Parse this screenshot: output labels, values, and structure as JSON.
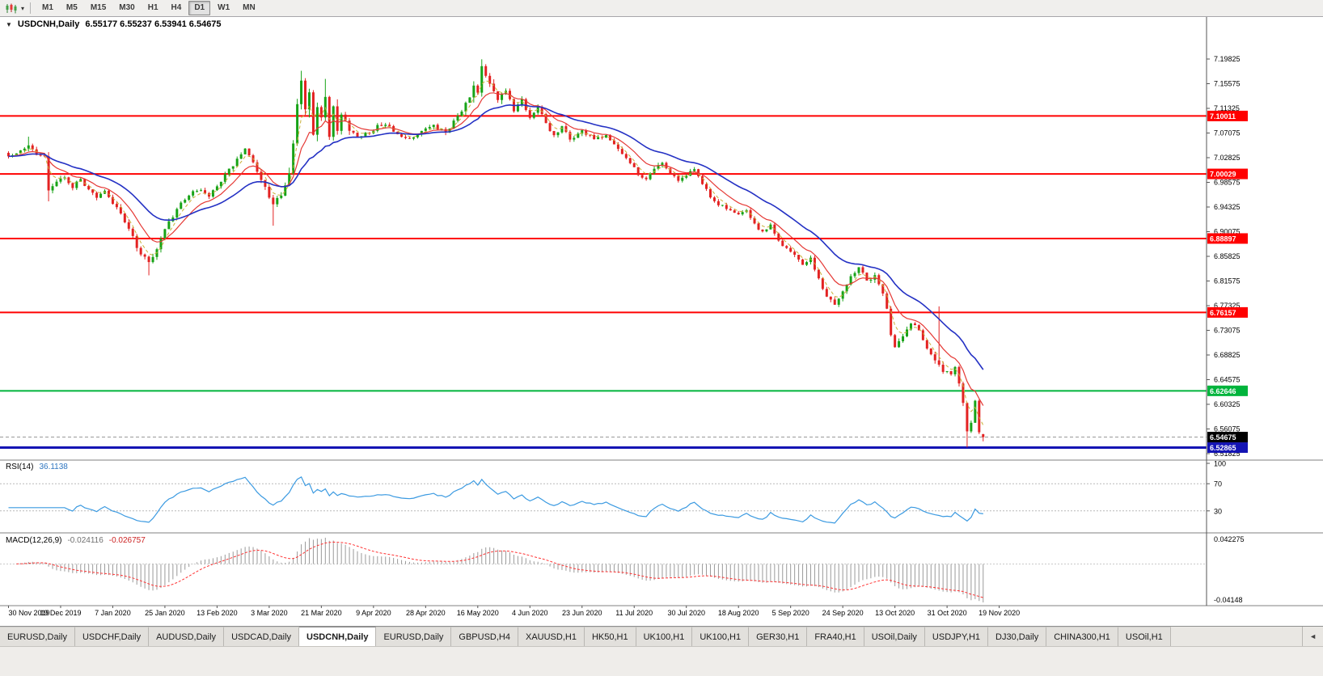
{
  "toolbar": {
    "timeframes": [
      "M1",
      "M5",
      "M15",
      "M30",
      "H1",
      "H4",
      "D1",
      "W1",
      "MN"
    ],
    "active": "D1"
  },
  "chart": {
    "collapse_icon": "▼",
    "title_symbol": "USDCNH,Daily",
    "title_ohlc": "6.55177 6.55237 6.53941 6.54675"
  },
  "chart_data": {
    "type": "candlestick",
    "symbol": "USDCNH",
    "timeframe": "Daily",
    "bars": 244,
    "seed": 20201119,
    "last_bar": {
      "open": 6.55177,
      "high": 6.55237,
      "low": 6.53941,
      "close": 6.54675
    },
    "price_range_visible": [
      6.51825,
      7.19825
    ],
    "y_ticks": [
      7.19825,
      7.15575,
      7.11325,
      7.07075,
      7.02825,
      6.98575,
      6.94325,
      6.90075,
      6.85825,
      6.81575,
      6.77325,
      6.73075,
      6.68825,
      6.64575,
      6.60325,
      6.56075,
      6.51825
    ],
    "x_labels": [
      "30 Nov 2019",
      "19 Dec 2019",
      "7 Jan 2020",
      "25 Jan 2020",
      "13 Feb 2020",
      "3 Mar 2020",
      "21 Mar 2020",
      "9 Apr 2020",
      "28 Apr 2020",
      "16 May 2020",
      "4 Jun 2020",
      "23 Jun 2020",
      "11 Jul 2020",
      "30 Jul 2020",
      "18 Aug 2020",
      "5 Sep 2020",
      "24 Sep 2020",
      "13 Oct 2020",
      "31 Oct 2020",
      "19 Nov 2020"
    ],
    "x_label_every": 13,
    "close_anchors": [
      [
        0,
        7.032
      ],
      [
        3,
        7.04
      ],
      [
        5,
        7.052
      ],
      [
        7,
        7.036
      ],
      [
        9,
        7.028
      ],
      [
        10,
        6.975
      ],
      [
        12,
        6.986
      ],
      [
        14,
        6.994
      ],
      [
        16,
        6.978
      ],
      [
        18,
        6.99
      ],
      [
        20,
        6.972
      ],
      [
        22,
        6.962
      ],
      [
        24,
        6.973
      ],
      [
        26,
        6.951
      ],
      [
        28,
        6.934
      ],
      [
        30,
        6.905
      ],
      [
        33,
        6.862
      ],
      [
        35,
        6.846
      ],
      [
        37,
        6.872
      ],
      [
        39,
        6.904
      ],
      [
        41,
        6.927
      ],
      [
        44,
        6.958
      ],
      [
        47,
        6.973
      ],
      [
        50,
        6.964
      ],
      [
        53,
        6.989
      ],
      [
        56,
        7.016
      ],
      [
        59,
        7.041
      ],
      [
        61,
        7.02
      ],
      [
        63,
        6.993
      ],
      [
        66,
        6.946
      ],
      [
        68,
        6.963
      ],
      [
        70,
        6.999
      ],
      [
        71,
        7.058
      ],
      [
        72,
        7.118
      ],
      [
        73,
        7.152
      ],
      [
        74,
        7.108
      ],
      [
        75,
        7.14
      ],
      [
        76,
        7.075
      ],
      [
        77,
        7.118
      ],
      [
        78,
        7.09
      ],
      [
        79,
        7.128
      ],
      [
        80,
        7.072
      ],
      [
        81,
        7.108
      ],
      [
        82,
        7.08
      ],
      [
        83,
        7.098
      ],
      [
        85,
        7.076
      ],
      [
        88,
        7.062
      ],
      [
        91,
        7.078
      ],
      [
        94,
        7.088
      ],
      [
        97,
        7.066
      ],
      [
        100,
        7.058
      ],
      [
        103,
        7.074
      ],
      [
        106,
        7.084
      ],
      [
        109,
        7.072
      ],
      [
        111,
        7.092
      ],
      [
        113,
        7.108
      ],
      [
        115,
        7.132
      ],
      [
        116,
        7.158
      ],
      [
        117,
        7.146
      ],
      [
        118,
        7.182
      ],
      [
        119,
        7.165
      ],
      [
        120,
        7.152
      ],
      [
        122,
        7.128
      ],
      [
        124,
        7.148
      ],
      [
        126,
        7.112
      ],
      [
        128,
        7.128
      ],
      [
        130,
        7.098
      ],
      [
        132,
        7.115
      ],
      [
        134,
        7.086
      ],
      [
        136,
        7.068
      ],
      [
        138,
        7.08
      ],
      [
        140,
        7.06
      ],
      [
        143,
        7.074
      ],
      [
        146,
        7.06
      ],
      [
        149,
        7.068
      ],
      [
        152,
        7.045
      ],
      [
        155,
        7.018
      ],
      [
        157,
        7.0
      ],
      [
        159,
        6.992
      ],
      [
        161,
        7.01
      ],
      [
        163,
        7.022
      ],
      [
        165,
        7.002
      ],
      [
        167,
        6.986
      ],
      [
        169,
        6.998
      ],
      [
        171,
        7.01
      ],
      [
        173,
        6.984
      ],
      [
        175,
        6.96
      ],
      [
        177,
        6.948
      ],
      [
        179,
        6.94
      ],
      [
        182,
        6.928
      ],
      [
        184,
        6.94
      ],
      [
        186,
        6.914
      ],
      [
        188,
        6.9
      ],
      [
        190,
        6.91
      ],
      [
        192,
        6.885
      ],
      [
        194,
        6.872
      ],
      [
        196,
        6.858
      ],
      [
        198,
        6.845
      ],
      [
        200,
        6.855
      ],
      [
        202,
        6.818
      ],
      [
        204,
        6.79
      ],
      [
        206,
        6.775
      ],
      [
        208,
        6.8
      ],
      [
        210,
        6.822
      ],
      [
        212,
        6.838
      ],
      [
        214,
        6.815
      ],
      [
        216,
        6.824
      ],
      [
        218,
        6.795
      ],
      [
        219,
        6.765
      ],
      [
        220,
        6.725
      ],
      [
        221,
        6.7
      ],
      [
        223,
        6.72
      ],
      [
        225,
        6.745
      ],
      [
        227,
        6.732
      ],
      [
        229,
        6.7
      ],
      [
        231,
        6.678
      ],
      [
        233,
        6.66
      ],
      [
        235,
        6.654
      ],
      [
        236,
        6.668
      ],
      [
        237,
        6.64
      ],
      [
        238,
        6.6
      ],
      [
        239,
        6.56
      ],
      [
        240,
        6.576
      ],
      [
        241,
        6.608
      ],
      [
        242,
        6.552
      ],
      [
        243,
        6.547
      ]
    ],
    "range_anchors": [
      [
        0,
        0.013
      ],
      [
        9,
        0.013
      ],
      [
        10,
        0.022
      ],
      [
        12,
        0.012
      ],
      [
        26,
        0.012
      ],
      [
        32,
        0.018
      ],
      [
        40,
        0.014
      ],
      [
        52,
        0.011
      ],
      [
        60,
        0.012
      ],
      [
        65,
        0.016
      ],
      [
        69,
        0.02
      ],
      [
        71,
        0.034
      ],
      [
        74,
        0.046
      ],
      [
        82,
        0.034
      ],
      [
        86,
        0.018
      ],
      [
        95,
        0.012
      ],
      [
        105,
        0.012
      ],
      [
        112,
        0.016
      ],
      [
        117,
        0.026
      ],
      [
        121,
        0.022
      ],
      [
        126,
        0.016
      ],
      [
        132,
        0.013
      ],
      [
        145,
        0.011
      ],
      [
        157,
        0.012
      ],
      [
        170,
        0.011
      ],
      [
        182,
        0.011
      ],
      [
        195,
        0.013
      ],
      [
        208,
        0.013
      ],
      [
        218,
        0.016
      ],
      [
        222,
        0.014
      ],
      [
        228,
        0.013
      ],
      [
        232,
        0.016
      ],
      [
        236,
        0.015
      ],
      [
        238,
        0.024
      ],
      [
        241,
        0.018
      ],
      [
        243,
        0.012
      ]
    ],
    "wick_events": [
      {
        "i": 5,
        "high": 7.0645
      },
      {
        "i": 10,
        "low": 6.953
      },
      {
        "i": 35,
        "low": 6.8255
      },
      {
        "i": 66,
        "low": 6.911
      },
      {
        "i": 73,
        "high": 7.178
      },
      {
        "i": 79,
        "high": 7.164
      },
      {
        "i": 118,
        "high": 7.1978
      },
      {
        "i": 232,
        "high": 6.772
      },
      {
        "i": 239,
        "low": 6.529
      }
    ],
    "candle_colors": {
      "up": "#17a317",
      "down": "#e32222"
    },
    "moving_averages": [
      {
        "period": 4,
        "color": "#c9b037",
        "dash": "4 3",
        "width": 1
      },
      {
        "period": 10,
        "color": "#e53935",
        "width": 1.2
      },
      {
        "period": 25,
        "color": "#2431c4",
        "width": 1.6
      }
    ],
    "hlines": [
      {
        "price": 7.10011,
        "color": "#ff0000",
        "width": 2
      },
      {
        "price": 7.00029,
        "color": "#ff0000",
        "width": 2
      },
      {
        "price": 6.88897,
        "color": "#ff0000",
        "width": 2
      },
      {
        "price": 6.76157,
        "color": "#ff0000",
        "width": 2
      },
      {
        "price": 6.62646,
        "color": "#00b43c",
        "width": 2
      },
      {
        "price": 6.52865,
        "color": "#1414b4",
        "width": 3
      }
    ],
    "current_price": {
      "value": 6.54675,
      "box_color": "#000000",
      "line_color": "#9a9a9a"
    },
    "rsi": {
      "label": "RSI(14)",
      "value_text": "36.1138",
      "period": 14,
      "color": "#3b9ae1",
      "levels": [
        70,
        30
      ],
      "axis_labels": [
        100,
        70,
        30
      ],
      "range": [
        0,
        100
      ]
    },
    "macd": {
      "label": "MACD(12,26,9)",
      "value_main": "-0.024116",
      "value_signal": "-0.026757",
      "fast": 12,
      "slow": 26,
      "signal": 9,
      "hist_color": "#9a9a9a",
      "signal_color": "#ff3333",
      "axis_top": "0.042275",
      "axis_bottom": "-0.04148"
    }
  },
  "tabs": {
    "items": [
      "EURUSD,Daily",
      "USDCHF,Daily",
      "AUDUSD,Daily",
      "USDCAD,Daily",
      "USDCNH,Daily",
      "EURUSD,Daily",
      "GBPUSD,H4",
      "XAUUSD,H1",
      "HK50,H1",
      "UK100,H1",
      "UK100,H1",
      "GER30,H1",
      "FRA40,H1",
      "USOil,Daily",
      "USDJPY,H1",
      "DJ30,Daily",
      "CHINA300,H1",
      "USOil,H1"
    ],
    "active_index": 4,
    "scroll_left_icon": "◄"
  }
}
